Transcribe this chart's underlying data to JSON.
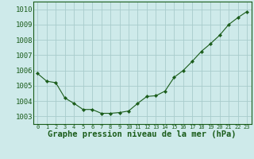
{
  "x": [
    0,
    1,
    2,
    3,
    4,
    5,
    6,
    7,
    8,
    9,
    10,
    11,
    12,
    13,
    14,
    15,
    16,
    17,
    18,
    19,
    20,
    21,
    22,
    23
  ],
  "y": [
    1005.8,
    1005.3,
    1005.2,
    1004.2,
    1003.85,
    1003.45,
    1003.45,
    1003.2,
    1003.2,
    1003.25,
    1003.35,
    1003.85,
    1004.3,
    1004.35,
    1004.65,
    1005.55,
    1006.0,
    1006.6,
    1007.25,
    1007.75,
    1008.3,
    1009.0,
    1009.45,
    1009.85
  ],
  "line_color": "#1a5c1a",
  "marker": "D",
  "marker_size": 2.2,
  "background_color": "#ceeaea",
  "grid_color": "#a8cccc",
  "xlabel": "Graphe pression niveau de la mer (hPa)",
  "xlabel_fontsize": 7.5,
  "ylabel_ticks": [
    1003,
    1004,
    1005,
    1006,
    1007,
    1008,
    1009,
    1010
  ],
  "ylim": [
    1002.5,
    1010.5
  ],
  "xlim": [
    -0.5,
    23.5
  ],
  "ytick_fontsize": 6.5,
  "xtick_fontsize": 5.0,
  "tick_color": "#1a5c1a"
}
